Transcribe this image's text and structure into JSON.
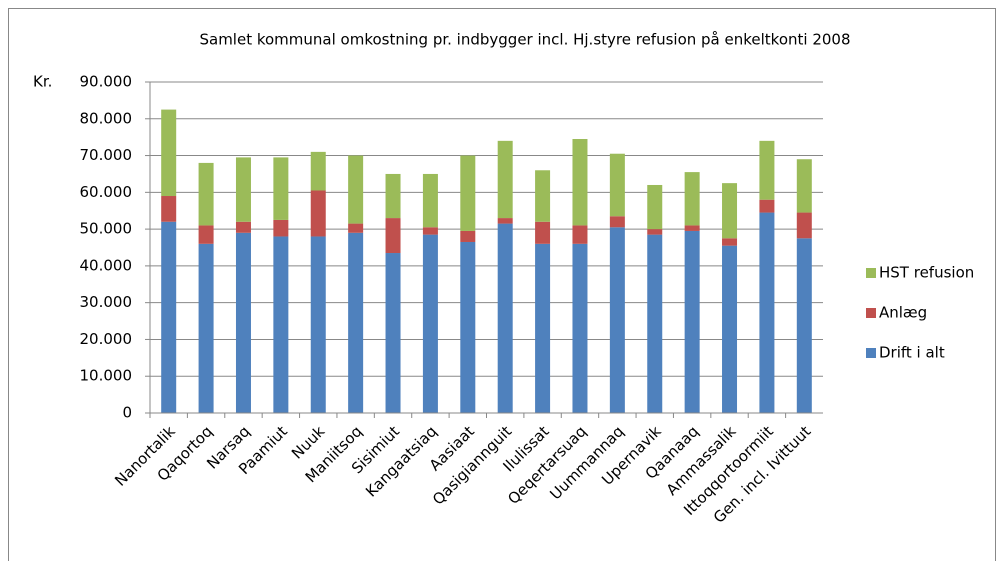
{
  "chart_data": {
    "type": "stacked_bar",
    "title": "Samlet kommunal omkostning pr. indbygger incl. Hj.styre refusion på enkeltkonti 2008",
    "y_label": "Kr.",
    "categories": [
      "Nanortalik",
      "Qaqortoq",
      "Narsaq",
      "Paamiut",
      "Nuuk",
      "Maniitsoq",
      "Sisimiut",
      "Kangaatsiaq",
      "Aasiaat",
      "Qasigiannguit",
      "Ilulissat",
      "Qeqertarsuaq",
      "Uummannaq",
      "Upernavik",
      "Qaanaaq",
      "Ammassalik",
      "Ittoqqortoormiit",
      "Gen. incl. Ivittuut"
    ],
    "series": [
      {
        "name": "Drift i alt",
        "color": "#4f81bd",
        "values": [
          52000,
          46000,
          49000,
          48000,
          48000,
          49000,
          43500,
          48500,
          46500,
          51500,
          46000,
          46000,
          50500,
          48500,
          49500,
          45500,
          54500,
          47500
        ]
      },
      {
        "name": "Anlæg",
        "color": "#c0504d",
        "values": [
          7000,
          5000,
          3000,
          4500,
          12500,
          2500,
          9500,
          2000,
          3000,
          1500,
          6000,
          5000,
          3000,
          1500,
          1500,
          2000,
          3500,
          7000
        ]
      },
      {
        "name": "HST refusion",
        "color": "#9bbb59",
        "values": [
          23500,
          17000,
          17500,
          17000,
          10500,
          18500,
          12000,
          14500,
          20500,
          21000,
          14000,
          23500,
          17000,
          12000,
          14500,
          15000,
          16000,
          14500
        ]
      }
    ],
    "ylim": [
      0,
      90000
    ],
    "yticks": [
      0,
      {
        "value": 10000,
        "label": "10.000"
      },
      {
        "value": 20000,
        "label": "20.000"
      },
      {
        "value": 30000,
        "label": "30.000"
      },
      {
        "value": 40000,
        "label": "40.000"
      },
      {
        "value": 50000,
        "label": "50.000"
      },
      {
        "value": 60000,
        "label": "60.000"
      },
      {
        "value": 70000,
        "label": "70.000"
      },
      {
        "value": 80000,
        "label": "80.000"
      },
      {
        "value": 90000,
        "label": "90.000"
      }
    ],
    "grid": true,
    "legend": "right"
  }
}
